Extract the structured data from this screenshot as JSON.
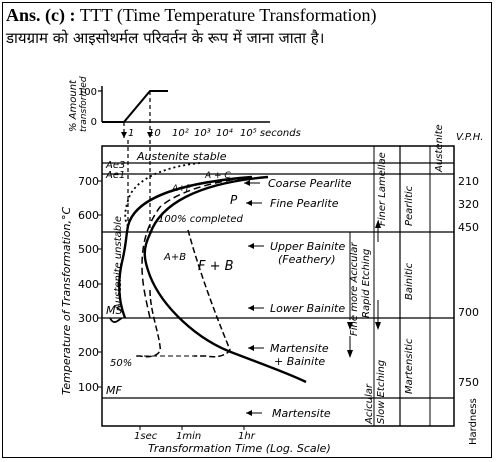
{
  "question": {
    "answer_label": "Ans. (c) :",
    "answer_text": "TTT (Time Temperature Transformation)",
    "hindi_line": "डायग्राम को आइसोथर्मल परिवर्तन के रूप में जाना जाता है।"
  },
  "diagram": {
    "ttt": {
      "y_axis_label": "Temperature of Transformation,°C",
      "x_axis_label": "Transformation Time (Log. Scale)",
      "y_ticks": [
        "700",
        "600",
        "500",
        "400",
        "300",
        "200",
        "100"
      ],
      "x_ticks": [
        "1sec",
        "1min",
        "1hr"
      ],
      "critical_temps": {
        "ae3": "Ae3",
        "ae1": "Ae1",
        "ms": "MS",
        "mf": "MF"
      },
      "regions": {
        "austenite_stable": "Austenite stable",
        "austenite_unstable": "Austenite unstable",
        "p": "P",
        "f_plus_b": "F + B",
        "a_plus_b": "A+B",
        "a_plus_f": "A+F",
        "a_plus_c": "A + C",
        "completed_100": "100% completed",
        "fifty_pct": "50%"
      },
      "products": [
        "Coarse Pearlite",
        "Fine Pearlite",
        "Upper Bainite",
        "(Feathery)",
        "Lower Bainite",
        "Martensite",
        "+ Bainite",
        "Martensite"
      ]
    },
    "inset": {
      "y_label_line1": "% Amount",
      "y_label_line2": "transformed",
      "y_ticks": [
        "100",
        "0"
      ],
      "x_ticks": [
        "1",
        "10",
        "10²",
        "10³",
        "10⁴",
        "10⁵ seconds"
      ]
    },
    "etching": {
      "col1_top": "Finer Lamellae",
      "col2_top": "Pearlitic",
      "col3_top": "Austenite",
      "col1_mid": "Fine more Acicular",
      "col1_mid2": "Rapid Etching",
      "col2_mid": "Bainitic",
      "col1_bottom": "Acicular",
      "col1_bottom2": "Slow Etching",
      "col2_bottom": "Martensitic"
    },
    "hardness": {
      "header": "V.P.H.",
      "values": [
        "210",
        "320",
        "450",
        "700",
        "750"
      ],
      "footer": "Hardness"
    }
  }
}
